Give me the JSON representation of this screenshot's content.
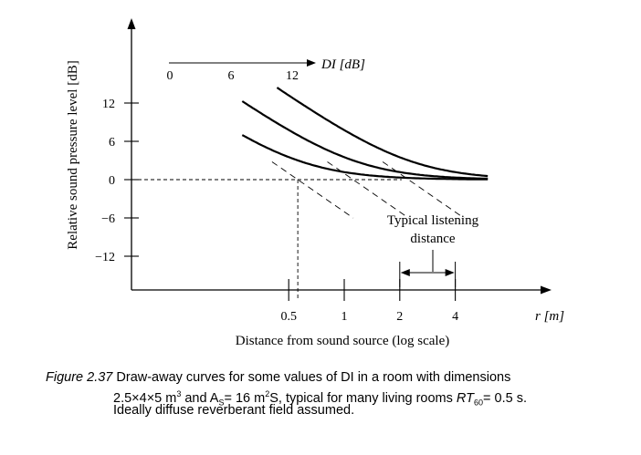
{
  "chart_data": {
    "type": "line",
    "title": "",
    "xlabel": "Distance from sound source (log scale)",
    "x_unit_label": "r [m]",
    "ylabel": "Relative sound pressure level [dB]",
    "x_scale": "log",
    "xlim": [
      0.2,
      6.5
    ],
    "ylim": [
      -16,
      20
    ],
    "x_ticks": [
      0.5,
      1,
      2,
      4
    ],
    "x_tick_labels": [
      "0.5",
      "1",
      "2",
      "4"
    ],
    "y_ticks": [
      12,
      6,
      0,
      -6,
      -12
    ],
    "y_tick_labels": [
      "12",
      "6",
      "0",
      "−6",
      "−12"
    ],
    "reverberation_distance": 0.56,
    "di_legend": {
      "label": "DI [dB]",
      "labels": [
        "0",
        "6",
        "12"
      ]
    },
    "series": [
      {
        "name": "0",
        "di": 0
      },
      {
        "name": "6",
        "di": 6
      },
      {
        "name": "12",
        "di": 12
      }
    ],
    "curve_x_range": [
      0.28,
      6
    ],
    "direct_field_x_range": [
      0.28,
      1.12
    ],
    "listening_distance": {
      "label_line1": "Typical listening",
      "label_line2": "distance",
      "range": [
        2,
        4
      ]
    },
    "grid": false,
    "legend": "top"
  },
  "caption": {
    "figure_number": "Figure 2.37",
    "line1": "Draw-away curves for some values of DI in a room with dimensions",
    "line2_prefix": "2.5×4×5 m",
    "line2_mid": " and A",
    "line2_mid2": "= 16 m",
    "line2_mid3": "S, typical for many living rooms ",
    "line2_rt": "RT",
    "line2_rt_sub": "60",
    "line2_end": "= 0.5 s.",
    "line3": "Ideally diffuse reverberant field assumed.",
    "sup3": "3",
    "sub_s": "S",
    "sup2": "2"
  }
}
